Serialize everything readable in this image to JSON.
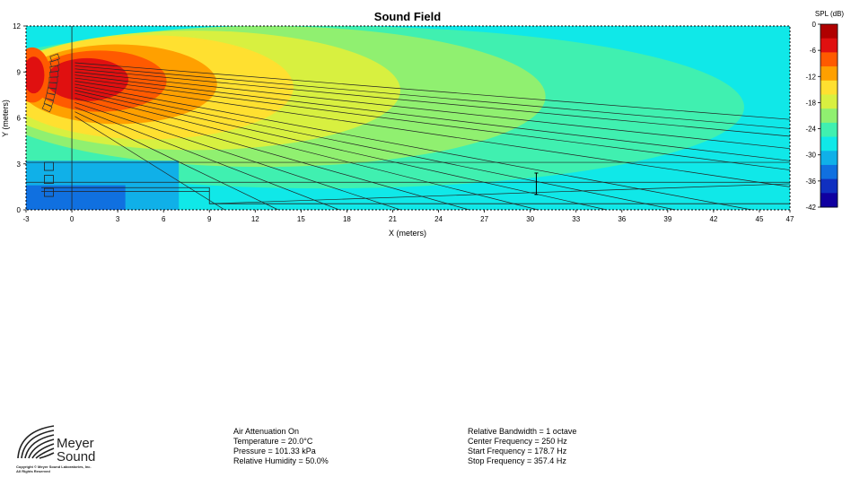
{
  "chart_data": {
    "type": "heatmap",
    "title": "Sound Field",
    "xlabel": "X (meters)",
    "ylabel": "Y (meters)",
    "xlim": [
      -3,
      47
    ],
    "ylim": [
      0,
      12
    ],
    "xticks": [
      "-3",
      "0",
      "3",
      "6",
      "9",
      "12",
      "15",
      "18",
      "21",
      "24",
      "27",
      "30",
      "33",
      "36",
      "39",
      "42",
      "45",
      "47"
    ],
    "yticks": [
      "0",
      "3",
      "6",
      "9",
      "12"
    ],
    "colorbar": {
      "title": "SPL (dB)",
      "ticks": [
        "0",
        "-6",
        "-12",
        "-18",
        "-24",
        "-30",
        "-36",
        "-42"
      ],
      "range": [
        -42,
        0
      ],
      "colors": [
        "#b00000",
        "#e01010",
        "#ff5a00",
        "#ffa000",
        "#ffe030",
        "#d8f040",
        "#90f070",
        "#40f0b0",
        "#10e8e8",
        "#10b0e8",
        "#1070e0",
        "#1030c0",
        "#1000a0"
      ]
    },
    "source_center": [
      0.2,
      8.5
    ],
    "regions": [
      {
        "level_db": -24,
        "color": "#10e8e8",
        "x": [
          -3,
          47
        ],
        "y": [
          0,
          12
        ]
      },
      {
        "level_db": -21,
        "color": "#40f0b0",
        "cx": 16.5,
        "cy": 6.7,
        "rx": 27.5,
        "ry": 5.3
      },
      {
        "level_db": -18,
        "color": "#90f070",
        "cx": 12.5,
        "cy": 7.4,
        "rx": 18.5,
        "ry": 4.6
      },
      {
        "level_db": -15,
        "color": "#d8f040",
        "cx": 8.0,
        "cy": 7.8,
        "rx": 13.5,
        "ry": 3.9
      },
      {
        "level_db": -12,
        "color": "#ffe030",
        "cx": 5.0,
        "cy": 8.0,
        "rx": 9.5,
        "ry": 3.4
      },
      {
        "level_db": -9,
        "color": "#ffa000",
        "cx": 3.0,
        "cy": 8.2,
        "rx": 6.5,
        "ry": 2.6
      },
      {
        "level_db": -6,
        "color": "#ff5a00",
        "cx": 1.8,
        "cy": 8.4,
        "rx": 4.4,
        "ry": 2.0
      },
      {
        "level_db": -3,
        "color": "#e01010",
        "cx": 1.0,
        "cy": 8.5,
        "rx": 2.7,
        "ry": 1.4
      },
      {
        "level_db": -6,
        "color": "#ff5a00",
        "cx": -2.6,
        "cy": 8.8,
        "rx": 1.2,
        "ry": 1.8
      },
      {
        "level_db": -3,
        "color": "#e01010",
        "cx": -2.5,
        "cy": 8.8,
        "rx": 0.7,
        "ry": 1.2
      }
    ],
    "low_regions": [
      {
        "level_db": -27,
        "color": "#10b0e8",
        "x": [
          -3,
          7
        ],
        "y": [
          0,
          3.2
        ]
      },
      {
        "level_db": -30,
        "color": "#1070e0",
        "x": [
          -3,
          3.5
        ],
        "y": [
          0,
          1.6
        ]
      }
    ],
    "rays": [
      {
        "from": [
          0.2,
          9.6
        ],
        "to": [
          47,
          5.9
        ]
      },
      {
        "from": [
          0.2,
          9.4
        ],
        "to": [
          47,
          5.3
        ]
      },
      {
        "from": [
          0.2,
          9.2
        ],
        "to": [
          47,
          4.8
        ]
      },
      {
        "from": [
          0.2,
          9.0
        ],
        "to": [
          47,
          4.0
        ]
      },
      {
        "from": [
          0.2,
          8.8
        ],
        "to": [
          47,
          3.2
        ]
      },
      {
        "from": [
          0.2,
          8.6
        ],
        "to": [
          47,
          2.6
        ]
      },
      {
        "from": [
          0.2,
          8.4
        ],
        "to": [
          47,
          1.5
        ]
      },
      {
        "from": [
          0.2,
          8.2
        ],
        "to": [
          44.5,
          0
        ]
      },
      {
        "from": [
          0.2,
          8.0
        ],
        "to": [
          39.5,
          0
        ]
      },
      {
        "from": [
          0.2,
          7.8
        ],
        "to": [
          35,
          0
        ]
      },
      {
        "from": [
          0.2,
          7.6
        ],
        "to": [
          30.5,
          0
        ]
      },
      {
        "from": [
          0.2,
          7.3
        ],
        "to": [
          26,
          0
        ]
      },
      {
        "from": [
          0.2,
          7.0
        ],
        "to": [
          21.5,
          0
        ]
      },
      {
        "from": [
          0.2,
          6.7
        ],
        "to": [
          17.5,
          0
        ]
      },
      {
        "from": [
          0.2,
          6.4
        ],
        "to": [
          13.5,
          0
        ]
      },
      {
        "from": [
          0.2,
          6.1
        ],
        "to": [
          10,
          0
        ]
      }
    ],
    "horizontal_lines": [
      {
        "y": 3.1,
        "x": [
          -3,
          47
        ]
      },
      {
        "y": 1.8,
        "x": [
          -3,
          47
        ]
      },
      {
        "y": 1.2,
        "x": [
          -2,
          9
        ]
      }
    ],
    "floor": [
      [
        -2,
        1.45
      ],
      [
        9,
        1.45
      ],
      [
        9,
        0.4
      ],
      [
        47,
        0.4
      ]
    ],
    "upper_floor": [
      [
        9,
        0.4
      ],
      [
        47,
        1.7
      ]
    ],
    "vertical_line": {
      "x": 0,
      "y": [
        0,
        12
      ]
    },
    "marker": {
      "x": 30.4,
      "y": [
        1.0,
        2.4
      ]
    }
  },
  "settings": {
    "air": {
      "line1": "Air Attenuation On",
      "line2": "Temperature = 20.0°C",
      "line3": "Pressure = 101.33  kPa",
      "line4": "Relative Humidity = 50.0%"
    },
    "freq": {
      "line1": "Relative Bandwidth = 1 octave",
      "line2": "Center Frequency = 250 Hz",
      "line3": "Start Frequency = 178.7 Hz",
      "line4": "Stop Frequency = 357.4 Hz"
    }
  },
  "logo": {
    "word1": "Meyer",
    "word2": "Sound",
    "copyright1": "Copyright © Meyer Sound Laboratories, Inc.",
    "copyright2": "All Rights Reserved"
  }
}
